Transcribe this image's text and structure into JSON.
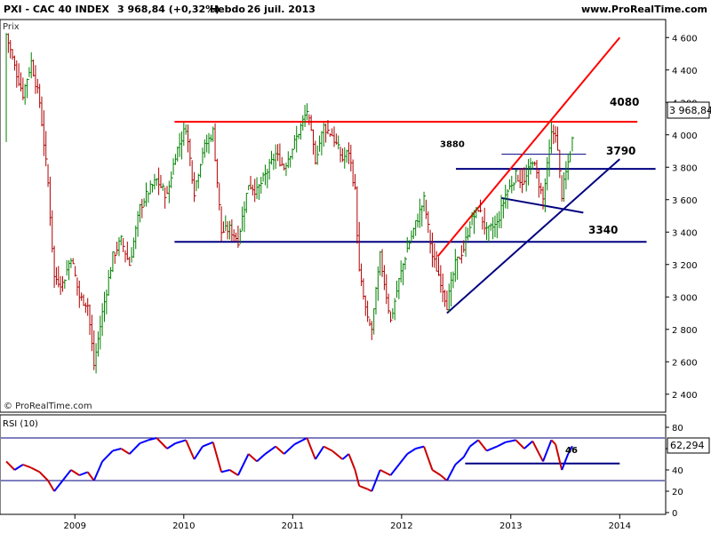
{
  "header": {
    "symbol": "PXI - CAC 40 INDEX",
    "price": "3 968,84 (+0,32%)",
    "period": "Hebdo",
    "date": "26 juil. 2013",
    "brand": "www.ProRealTime.com"
  },
  "price_panel": {
    "label": "Prix",
    "copyright": "© ProRealTime.com",
    "y_ticks": [
      "4 600",
      "4 400",
      "4 200",
      "4 000",
      "3 800",
      "3 600",
      "3 400",
      "3 200",
      "3 000",
      "2 800",
      "2 600",
      "2 400"
    ],
    "last_price_label": "3 968,84"
  },
  "rsi_panel": {
    "label": "RSI (10)",
    "y_ticks": [
      "80",
      "60",
      "40",
      "20",
      "0"
    ],
    "last_value_label": "62,294",
    "level_label": "46"
  },
  "x_axis": {
    "ticks": [
      "2009",
      "2010",
      "2011",
      "2012",
      "2013",
      "2014"
    ]
  },
  "colors": {
    "up_candle": "#008000",
    "down_candle": "#b00000",
    "resistance": "#ff0000",
    "support": "#000080",
    "rsi_up": "#0000ff",
    "rsi_down": "#cc0000",
    "panel_border": "#000000"
  },
  "chart_data": [
    {
      "type": "line",
      "title": "PXI - CAC 40 INDEX",
      "ylabel": "Prix",
      "ylim": [
        2300,
        4700
      ],
      "x_range": [
        "2008-05",
        "2014-06"
      ],
      "series": [
        {
          "name": "CAC 40",
          "points": [
            [
              "2008-05-16",
              4620
            ],
            [
              "2008-06-13",
              4420
            ],
            [
              "2008-07-11",
              4250
            ],
            [
              "2008-08-08",
              4450
            ],
            [
              "2008-09-05",
              4200
            ],
            [
              "2008-10-03",
              3700
            ],
            [
              "2008-10-24",
              3120
            ],
            [
              "2008-11-21",
              3080
            ],
            [
              "2008-12-19",
              3250
            ],
            [
              "2009-01-16",
              3000
            ],
            [
              "2009-02-13",
              2950
            ],
            [
              "2009-03-06",
              2580
            ],
            [
              "2009-04-03",
              2900
            ],
            [
              "2009-05-08",
              3250
            ],
            [
              "2009-06-05",
              3350
            ],
            [
              "2009-07-03",
              3200
            ],
            [
              "2009-08-07",
              3550
            ],
            [
              "2009-09-04",
              3650
            ],
            [
              "2009-10-02",
              3720
            ],
            [
              "2009-11-06",
              3620
            ],
            [
              "2009-12-04",
              3880
            ],
            [
              "2010-01-08",
              4050
            ],
            [
              "2010-02-05",
              3650
            ],
            [
              "2010-03-05",
              3900
            ],
            [
              "2010-04-09",
              4020
            ],
            [
              "2010-05-07",
              3400
            ],
            [
              "2010-06-04",
              3420
            ],
            [
              "2010-07-02",
              3350
            ],
            [
              "2010-08-06",
              3700
            ],
            [
              "2010-09-03",
              3650
            ],
            [
              "2010-10-01",
              3750
            ],
            [
              "2010-11-05",
              3880
            ],
            [
              "2010-12-03",
              3800
            ],
            [
              "2011-01-07",
              3950
            ],
            [
              "2011-02-18",
              4150
            ],
            [
              "2011-03-18",
              3850
            ],
            [
              "2011-04-15",
              4050
            ],
            [
              "2011-05-13",
              4000
            ],
            [
              "2011-06-17",
              3850
            ],
            [
              "2011-07-08",
              3900
            ],
            [
              "2011-07-29",
              3650
            ],
            [
              "2011-08-12",
              3150
            ],
            [
              "2011-09-09",
              2850
            ],
            [
              "2011-09-23",
              2800
            ],
            [
              "2011-10-21",
              3250
            ],
            [
              "2011-11-25",
              2850
            ],
            [
              "2011-12-23",
              3100
            ],
            [
              "2012-01-20",
              3300
            ],
            [
              "2012-02-17",
              3450
            ],
            [
              "2012-03-16",
              3600
            ],
            [
              "2012-04-13",
              3250
            ],
            [
              "2012-05-11",
              3100
            ],
            [
              "2012-06-01",
              2950
            ],
            [
              "2012-06-29",
              3200
            ],
            [
              "2012-07-27",
              3300
            ],
            [
              "2012-08-17",
              3450
            ],
            [
              "2012-09-14",
              3550
            ],
            [
              "2012-10-12",
              3400
            ],
            [
              "2012-11-16",
              3450
            ],
            [
              "2012-12-14",
              3630
            ],
            [
              "2013-01-18",
              3750
            ],
            [
              "2013-02-15",
              3700
            ],
            [
              "2013-03-15",
              3850
            ],
            [
              "2013-04-19",
              3600
            ],
            [
              "2013-05-17",
              4000
            ],
            [
              "2013-05-31",
              4020
            ],
            [
              "2013-06-21",
              3630
            ],
            [
              "2013-07-12",
              3830
            ],
            [
              "2013-07-26",
              3969
            ]
          ]
        }
      ],
      "annotations": [
        {
          "type": "hline",
          "value": 4080,
          "label": "4080",
          "color": "#ff0000"
        },
        {
          "type": "hline",
          "value": 3790,
          "label": "3790",
          "color": "#000080"
        },
        {
          "type": "hline",
          "value": 3340,
          "label": "3340",
          "color": "#000080"
        },
        {
          "type": "hline",
          "value": 3880,
          "label": "3880",
          "color": "#000080"
        },
        {
          "type": "trendline",
          "from": [
            "2012-05-01",
            3250
          ],
          "to": [
            "2014-01-01",
            4600
          ],
          "color": "#ff0000"
        },
        {
          "type": "trendline",
          "from": [
            "2012-06-01",
            2900
          ],
          "to": [
            "2014-01-01",
            3850
          ],
          "color": "#000080"
        },
        {
          "type": "trendline",
          "from": [
            "2012-12-01",
            3610
          ],
          "to": [
            "2013-09-01",
            3520
          ],
          "color": "#000080"
        }
      ]
    },
    {
      "type": "line",
      "title": "RSI (10)",
      "ylim": [
        0,
        90
      ],
      "series": [
        {
          "name": "RSI (10)",
          "points": [
            [
              "2008-05-16",
              48
            ],
            [
              "2008-06-13",
              40
            ],
            [
              "2008-07-11",
              45
            ],
            [
              "2008-08-08",
              42
            ],
            [
              "2008-09-05",
              38
            ],
            [
              "2008-10-03",
              30
            ],
            [
              "2008-10-24",
              20
            ],
            [
              "2008-11-21",
              30
            ],
            [
              "2008-12-19",
              40
            ],
            [
              "2009-01-16",
              35
            ],
            [
              "2009-02-13",
              38
            ],
            [
              "2009-03-06",
              30
            ],
            [
              "2009-04-03",
              48
            ],
            [
              "2009-05-08",
              58
            ],
            [
              "2009-06-05",
              60
            ],
            [
              "2009-07-03",
              55
            ],
            [
              "2009-08-07",
              65
            ],
            [
              "2009-09-04",
              68
            ],
            [
              "2009-10-02",
              70
            ],
            [
              "2009-11-06",
              60
            ],
            [
              "2009-12-04",
              65
            ],
            [
              "2010-01-08",
              68
            ],
            [
              "2010-02-05",
              50
            ],
            [
              "2010-03-05",
              62
            ],
            [
              "2010-04-09",
              66
            ],
            [
              "2010-05-07",
              38
            ],
            [
              "2010-06-04",
              40
            ],
            [
              "2010-07-02",
              35
            ],
            [
              "2010-08-06",
              55
            ],
            [
              "2010-09-03",
              48
            ],
            [
              "2010-10-01",
              55
            ],
            [
              "2010-11-05",
              62
            ],
            [
              "2010-12-03",
              55
            ],
            [
              "2011-01-07",
              64
            ],
            [
              "2011-02-18",
              70
            ],
            [
              "2011-03-18",
              50
            ],
            [
              "2011-04-15",
              62
            ],
            [
              "2011-05-13",
              58
            ],
            [
              "2011-06-17",
              50
            ],
            [
              "2011-07-08",
              55
            ],
            [
              "2011-07-29",
              40
            ],
            [
              "2011-08-12",
              25
            ],
            [
              "2011-09-09",
              22
            ],
            [
              "2011-09-23",
              20
            ],
            [
              "2011-10-21",
              40
            ],
            [
              "2011-11-25",
              35
            ],
            [
              "2011-12-23",
              45
            ],
            [
              "2012-01-20",
              55
            ],
            [
              "2012-02-17",
              60
            ],
            [
              "2012-03-16",
              62
            ],
            [
              "2012-04-13",
              40
            ],
            [
              "2012-05-11",
              35
            ],
            [
              "2012-06-01",
              30
            ],
            [
              "2012-06-29",
              45
            ],
            [
              "2012-07-27",
              52
            ],
            [
              "2012-08-17",
              62
            ],
            [
              "2012-09-14",
              68
            ],
            [
              "2012-10-12",
              58
            ],
            [
              "2012-11-16",
              62
            ],
            [
              "2012-12-14",
              66
            ],
            [
              "2013-01-18",
              68
            ],
            [
              "2013-02-15",
              60
            ],
            [
              "2013-03-15",
              67
            ],
            [
              "2013-04-19",
              48
            ],
            [
              "2013-05-17",
              68
            ],
            [
              "2013-05-31",
              64
            ],
            [
              "2013-06-21",
              40
            ],
            [
              "2013-07-12",
              55
            ],
            [
              "2013-07-26",
              62.294
            ]
          ]
        }
      ],
      "annotations": [
        {
          "type": "hline",
          "value": 70,
          "color": "#000080"
        },
        {
          "type": "hline",
          "value": 30,
          "color": "#000080"
        },
        {
          "type": "hline",
          "value": 46,
          "label": "46",
          "color": "#000080"
        }
      ]
    }
  ]
}
